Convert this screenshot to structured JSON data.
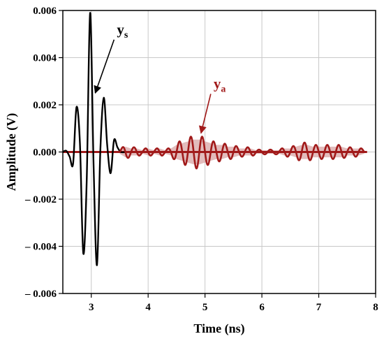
{
  "chart_data": {
    "type": "line",
    "title": "",
    "xlabel": "Time (ns)",
    "ylabel": "Amplitude (V)",
    "xlim": [
      2.5,
      8
    ],
    "ylim": [
      -0.006,
      0.006
    ],
    "x_ticks": [
      3,
      4,
      5,
      6,
      7,
      8
    ],
    "x_tick_labels": [
      "3",
      "4",
      "5",
      "6",
      "7",
      "8"
    ],
    "y_ticks": [
      -0.006,
      -0.004,
      -0.002,
      0.0,
      0.002,
      0.004,
      0.006
    ],
    "y_tick_labels": [
      "– 0.006",
      "– 0.004",
      "– 0.002",
      "0.000",
      "0.002",
      "0.004",
      "0.006"
    ],
    "grid": true,
    "legend": "none",
    "colors": {
      "ys": "#000000",
      "ya": "#a11a1a",
      "ya_fill": "#d6a0a0",
      "grid": "#c8c8c8"
    },
    "series": [
      {
        "key": "ys",
        "x": [
          2.5,
          2.56,
          2.62,
          2.68,
          2.74,
          2.8,
          2.86,
          2.92,
          2.98,
          3.04,
          3.1,
          3.16,
          3.22,
          3.28,
          3.34,
          3.4,
          3.46,
          3.52,
          3.6
        ],
        "values": [
          0.0,
          5e-05,
          -0.0002,
          -0.0005,
          0.0019,
          0.0004,
          -0.0043,
          -0.0012,
          0.0059,
          -0.0005,
          -0.0048,
          0.0001,
          0.0023,
          0.0003,
          -0.0009,
          0.0005,
          0.0002,
          0.0,
          0.0
        ]
      },
      {
        "key": "ya",
        "x": [
          3.5,
          3.6,
          3.7,
          3.8,
          3.9,
          4.0,
          4.1,
          4.2,
          4.3,
          4.4,
          4.5,
          4.6,
          4.7,
          4.8,
          4.9,
          5.0,
          5.1,
          5.2,
          5.3,
          5.4,
          5.5,
          5.6,
          5.7,
          5.8,
          5.9,
          6.0,
          6.1,
          6.2,
          6.3,
          6.4,
          6.5,
          6.6,
          6.7,
          6.8,
          6.9,
          7.0,
          7.1,
          7.2,
          7.3,
          7.4,
          7.5,
          7.6,
          7.7,
          7.8
        ],
        "envelope": [
          0.0001,
          0.0003,
          0.0002,
          0.0002,
          0.0001,
          0.0002,
          0.0001,
          0.0002,
          0.0001,
          0.0002,
          0.0004,
          0.0005,
          0.0006,
          0.0007,
          0.0007,
          0.0006,
          0.0005,
          0.0004,
          0.0004,
          0.0003,
          0.0003,
          0.0002,
          0.0002,
          0.0002,
          0.0001,
          0.0001,
          0.0001,
          0.0001,
          0.0001,
          0.0002,
          0.0002,
          0.0003,
          0.0004,
          0.0004,
          0.0003,
          0.0003,
          0.0003,
          0.0003,
          0.0003,
          0.0003,
          0.0002,
          0.0002,
          0.0002,
          0.0001
        ],
        "frequency_ghz": 5
      }
    ],
    "annotations": [
      {
        "key": "ys",
        "text": "y",
        "sub": "s",
        "pointer_to": [
          3.07,
          0.0025
        ],
        "text_at": [
          3.45,
          0.005
        ]
      },
      {
        "key": "ya",
        "text": "y",
        "sub": "a",
        "pointer_to": [
          4.93,
          0.0008
        ],
        "text_at": [
          5.15,
          0.0027
        ]
      }
    ]
  }
}
